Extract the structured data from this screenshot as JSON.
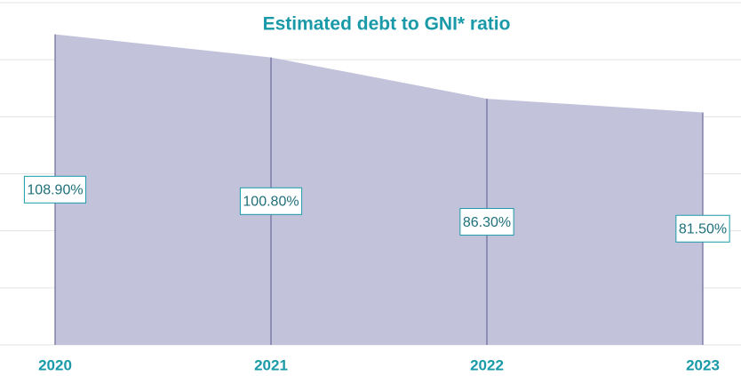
{
  "chart_data": {
    "type": "area",
    "title": "Estimated debt to GNI* ratio",
    "categories": [
      "2020",
      "2021",
      "2022",
      "2023"
    ],
    "values": [
      108.9,
      100.8,
      86.3,
      81.5
    ],
    "value_labels": [
      "108.90%",
      "100.80%",
      "86.30%",
      "81.50%"
    ],
    "color": "#c2c3db",
    "line_color": "#6b6b9a",
    "label_color": "#1a9aa8",
    "ylim": [
      0,
      120
    ],
    "yticks": [
      0,
      20,
      40,
      60,
      80,
      100,
      120
    ],
    "grid": true
  }
}
